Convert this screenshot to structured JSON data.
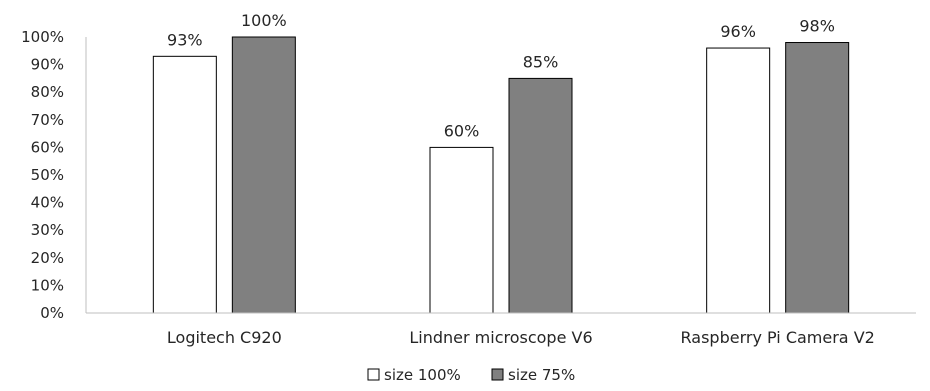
{
  "chart_data": {
    "type": "bar",
    "title": "",
    "xlabel": "",
    "ylabel": "",
    "categories": [
      "Logitech C920",
      "Lindner microscope V6",
      "Raspberry Pi Camera V2"
    ],
    "series": [
      {
        "name": "size 100%",
        "values": [
          93,
          60,
          96
        ],
        "color": "#ffffff",
        "stroke": "#000000"
      },
      {
        "name": "size 75%",
        "values": [
          100,
          85,
          98
        ],
        "color": "#808080",
        "stroke": "#000000"
      }
    ],
    "data_labels": [
      [
        "93%",
        "60%",
        "96%"
      ],
      [
        "100%",
        "85%",
        "98%"
      ]
    ],
    "ylim": [
      0,
      100
    ],
    "yticks": [
      0,
      10,
      20,
      30,
      40,
      50,
      60,
      70,
      80,
      90,
      100
    ],
    "ytick_labels": [
      "0%",
      "10%",
      "20%",
      "30%",
      "40%",
      "50%",
      "60%",
      "70%",
      "80%",
      "90%",
      "100%"
    ],
    "grid": false,
    "legend_position": "bottom"
  }
}
